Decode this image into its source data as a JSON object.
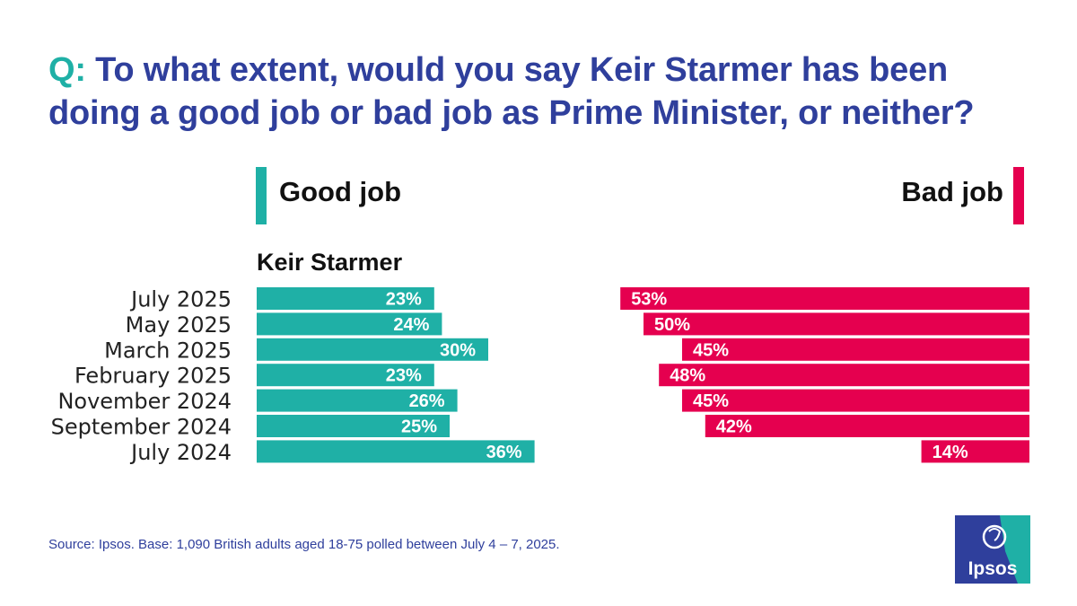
{
  "title": {
    "prefix": "Q:",
    "text": "To what extent, would you say Keir Starmer has been doing a good job or bad job as Prime Minister, or neither?"
  },
  "legend": {
    "good_label": "Good job",
    "bad_label": "Bad job"
  },
  "subject_label": "Keir Starmer",
  "colors": {
    "good": "#1fb0a6",
    "bad": "#e5004f",
    "title": "#2f3f9c",
    "accent": "#1fb0a6"
  },
  "chart_data": {
    "type": "bar",
    "orientation": "horizontal-diverging",
    "categories": [
      "July 2025",
      "May 2025",
      "March 2025",
      "February 2025",
      "November 2024",
      "September 2024",
      "July 2024"
    ],
    "series": [
      {
        "name": "Good job",
        "values": [
          23,
          24,
          30,
          23,
          26,
          25,
          36
        ],
        "labels": [
          "23%",
          "24%",
          "30%",
          "23%",
          "26%",
          "25%",
          "36%"
        ]
      },
      {
        "name": "Bad job",
        "values": [
          53,
          50,
          45,
          48,
          45,
          42,
          14
        ],
        "labels": [
          "53%",
          "50%",
          "45%",
          "48%",
          "45%",
          "42%",
          "14%"
        ]
      }
    ],
    "unit": "%"
  },
  "source": "Source: Ipsos. Base: 1,090 British adults aged 18-75 polled between July 4 – 7, 2025.",
  "logo_text": "Ipsos"
}
